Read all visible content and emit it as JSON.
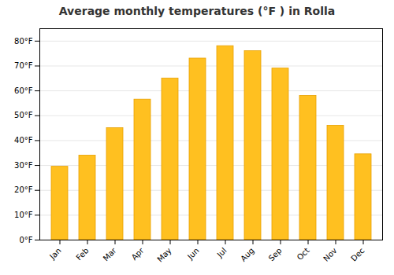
{
  "chart_data": {
    "type": "bar",
    "title": "Average monthly temperatures (°F ) in Rolla",
    "categories": [
      "Jan",
      "Feb",
      "Mar",
      "Apr",
      "May",
      "Jun",
      "Jul",
      "Aug",
      "Sep",
      "Oct",
      "Nov",
      "Dec"
    ],
    "values": [
      29.5,
      34.0,
      45.0,
      56.5,
      65.0,
      73.0,
      78.0,
      76.0,
      69.0,
      58.0,
      46.0,
      34.5
    ],
    "color": "#FFC020",
    "ylim": [
      0,
      85
    ],
    "yticks": [
      {
        "value": 0,
        "label": "0°F"
      },
      {
        "value": 10,
        "label": "10°F"
      },
      {
        "value": 20,
        "label": "20°F"
      },
      {
        "value": 30,
        "label": "30°F"
      },
      {
        "value": 40,
        "label": "40°F"
      },
      {
        "value": 50,
        "label": "50°F"
      },
      {
        "value": 60,
        "label": "60°F"
      },
      {
        "value": 70,
        "label": "70°F"
      },
      {
        "value": 80,
        "label": "80°F"
      }
    ],
    "grid": true
  }
}
